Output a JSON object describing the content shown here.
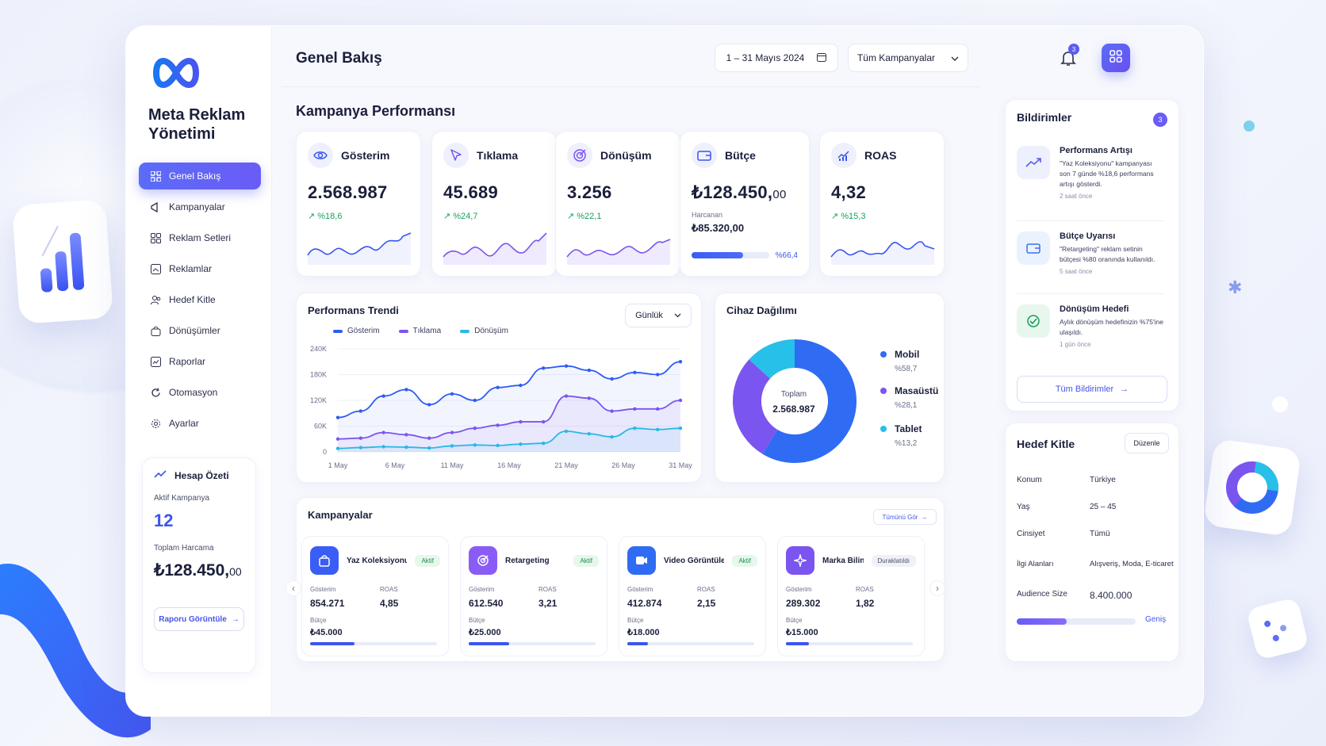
{
  "app": {
    "brand": "Meta Reklam Yönetimi"
  },
  "sidebar": {
    "items": [
      {
        "label": "Genel Bakış",
        "icon": "grid-icon",
        "active": true
      },
      {
        "label": "Kampanyalar",
        "icon": "megaphone-icon"
      },
      {
        "label": "Reklam Setleri",
        "icon": "layers-icon"
      },
      {
        "label": "Reklamlar",
        "icon": "image-icon"
      },
      {
        "label": "Hedef Kitle",
        "icon": "users-icon"
      },
      {
        "label": "Dönüşümler",
        "icon": "bag-icon"
      },
      {
        "label": "Raporlar",
        "icon": "report-icon"
      },
      {
        "label": "Otomasyon",
        "icon": "refresh-icon"
      },
      {
        "label": "Ayarlar",
        "icon": "gear-icon"
      }
    ],
    "summary": {
      "title": "Hesap Özeti",
      "active_label": "Aktif Kampanya",
      "active_value": "12",
      "spend_label": "Toplam Harcama",
      "spend_main": "₺128.450,",
      "spend_cents": "00",
      "report_button": "Raporu Görüntüle"
    }
  },
  "header": {
    "title": "Genel Bakış",
    "date_range": "1 – 31 Mayıs 2024",
    "campaign_filter": "Tüm Kampanyalar",
    "notification_count": "3"
  },
  "performance": {
    "title": "Kampanya Performansı",
    "kpis": [
      {
        "label": "Gösterim",
        "icon": "eye-icon",
        "value": "2.568.987",
        "change": "↗ %18,6"
      },
      {
        "label": "Tıklama",
        "icon": "cursor-icon",
        "value": "45.689",
        "change": "↗ %24,7"
      },
      {
        "label": "Dönüşüm",
        "icon": "target-icon",
        "value": "3.256",
        "change": "↗ %22,1"
      },
      {
        "label": "Bütçe",
        "icon": "wallet-icon",
        "value_main": "₺128.450,",
        "value_cents": "00",
        "spent_label": "Harcanan",
        "spent_value": "₺85.320,00",
        "spent_pct": "%66,4",
        "spent_fraction": 0.664
      },
      {
        "label": "ROAS",
        "icon": "chart-icon",
        "value": "4,32",
        "change": "↗ %15,3"
      }
    ]
  },
  "trend": {
    "title": "Performans Trendi",
    "period": "Günlük",
    "legend": [
      "Gösterim",
      "Tıklama",
      "Dönüşüm"
    ]
  },
  "chart_data": {
    "type": "area",
    "title": "Performans Trendi",
    "x_ticks": [
      "1 May",
      "6 May",
      "11 May",
      "16 May",
      "21 May",
      "26 May",
      "31 May"
    ],
    "y_ticks": [
      "0",
      "60K",
      "120K",
      "180K",
      "240K"
    ],
    "ylim": [
      0,
      240000
    ],
    "x": [
      "1 May",
      "3 May",
      "5 May",
      "7 May",
      "9 May",
      "11 May",
      "13 May",
      "15 May",
      "17 May",
      "19 May",
      "21 May",
      "23 May",
      "25 May",
      "27 May",
      "29 May",
      "31 May"
    ],
    "series": [
      {
        "name": "Gösterim",
        "color": "#2f5cf2",
        "values": [
          80000,
          95000,
          130000,
          145000,
          110000,
          135000,
          120000,
          150000,
          155000,
          195000,
          200000,
          190000,
          170000,
          185000,
          180000,
          210000
        ]
      },
      {
        "name": "Tıklama",
        "color": "#7b55ef",
        "values": [
          30000,
          32000,
          45000,
          40000,
          32000,
          45000,
          55000,
          62000,
          70000,
          70000,
          130000,
          125000,
          95000,
          100000,
          100000,
          120000
        ]
      },
      {
        "name": "Dönüşüm",
        "color": "#27b9e6",
        "values": [
          8000,
          10000,
          12000,
          11000,
          9000,
          14000,
          16000,
          15000,
          18000,
          20000,
          48000,
          42000,
          35000,
          55000,
          52000,
          55000
        ]
      }
    ],
    "grid": true,
    "legend_position": "top-left"
  },
  "device": {
    "title": "Cihaz Dağılımı",
    "center_label": "Toplam",
    "center_value": "2.568.987",
    "slices": [
      {
        "name": "Mobil",
        "pct": "%58,7",
        "value": 58.7,
        "color": "#2f6cf3"
      },
      {
        "name": "Masaüstü",
        "pct": "%28,1",
        "value": 28.1,
        "color": "#7b55ef"
      },
      {
        "name": "Tablet",
        "pct": "%13,2",
        "value": 13.2,
        "color": "#27c0e8"
      }
    ]
  },
  "campaigns": {
    "title": "Kampanyalar",
    "see_all": "Tümünü Gör",
    "labels": {
      "impressions": "Gösterim",
      "roas": "ROAS",
      "budget": "Bütçe"
    },
    "items": [
      {
        "name": "Yaz Koleksiyonu",
        "status": "Aktif",
        "icon": "bag-icon",
        "color": "#3a5ef5",
        "impressions": "854.271",
        "roas": "4,85",
        "budget": "₺45.000",
        "progress": 0.35
      },
      {
        "name": "Retargeting",
        "status": "Aktif",
        "icon": "target-icon",
        "color": "#8a5cf6",
        "impressions": "612.540",
        "roas": "3,21",
        "budget": "₺25.000",
        "progress": 0.32
      },
      {
        "name": "Video Görüntüleme",
        "status": "Aktif",
        "icon": "play-icon",
        "color": "#2f6cf3",
        "impressions": "412.874",
        "roas": "2,15",
        "budget": "₺18.000",
        "progress": 0.16
      },
      {
        "name": "Marka Bilinirliği",
        "status": "Duraklatıldı",
        "icon": "sparkle-icon",
        "color": "#7b55ef",
        "impressions": "289.302",
        "roas": "1,82",
        "budget": "₺15.000",
        "progress": 0.18
      }
    ]
  },
  "notifications": {
    "title": "Bildirimler",
    "count": "3",
    "items": [
      {
        "title": "Performans Artışı",
        "desc": "\"Yaz Koleksiyonu\" kampanyası son 7 günde %18,6 performans artışı gösterdi.",
        "time": "2 saat önce",
        "icon": "trend-up-icon"
      },
      {
        "title": "Bütçe Uyarısı",
        "desc": "\"Retargeting\" reklam setinin bütçesi %80 oranında kullanıldı.",
        "time": "5 saat önce",
        "icon": "wallet-icon"
      },
      {
        "title": "Dönüşüm Hedefi",
        "desc": "Aylık dönüşüm hedefinizin %75'ine ulaşıldı.",
        "time": "1 gün önce",
        "icon": "check-icon"
      }
    ],
    "all_button": "Tüm Bildirimler"
  },
  "audience": {
    "title": "Hedef Kitle",
    "edit": "Düzenle",
    "rows": [
      {
        "k": "Konum",
        "v": "Türkiye"
      },
      {
        "k": "Yaş",
        "v": "25 – 45"
      },
      {
        "k": "Cinsiyet",
        "v": "Tümü"
      },
      {
        "k": "İlgi Alanları",
        "v": "Alışveriş, Moda, E-ticaret"
      },
      {
        "k": "Audience Size",
        "v": "8.400.000"
      }
    ],
    "reach_label": "Geniş",
    "reach_fraction": 0.42
  }
}
